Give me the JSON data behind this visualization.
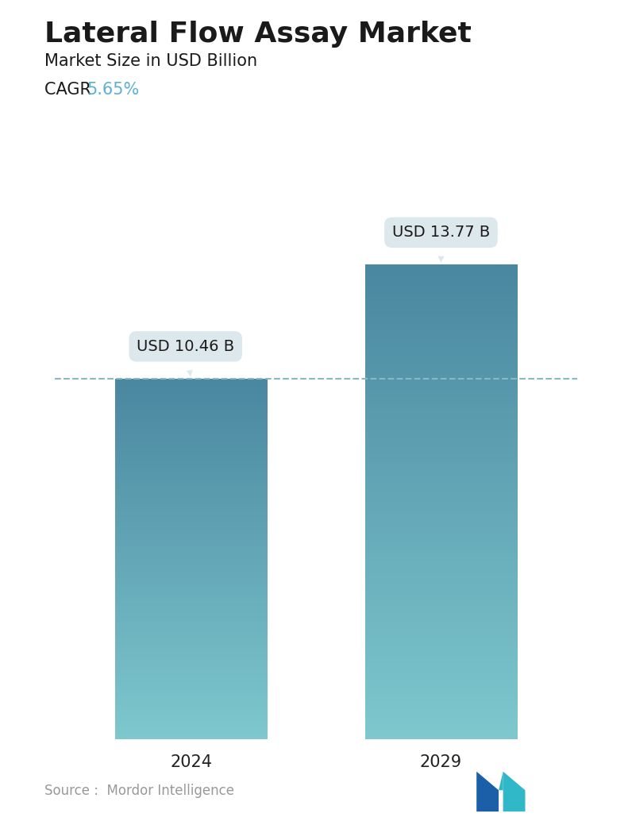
{
  "title": "Lateral Flow Assay Market",
  "subtitle": "Market Size in USD Billion",
  "cagr_label": "CAGR ",
  "cagr_value": "5.65%",
  "cagr_color": "#5bafd6",
  "categories": [
    "2024",
    "2029"
  ],
  "values": [
    10.46,
    13.77
  ],
  "bar_labels": [
    "USD 10.46 B",
    "USD 13.77 B"
  ],
  "bar_top_color": "#4a87a0",
  "bar_bottom_color": "#7ec8ce",
  "dashed_line_color": "#88b8c8",
  "dashed_line_value": 10.46,
  "annotation_bg_color": "#dde8ed",
  "source_text": "Source :  Mordor Intelligence",
  "source_color": "#999999",
  "background_color": "#ffffff",
  "title_fontsize": 26,
  "subtitle_fontsize": 15,
  "cagr_fontsize": 15,
  "bar_label_fontsize": 14,
  "tick_fontsize": 15,
  "source_fontsize": 12,
  "ylim": [
    0,
    15.5
  ],
  "bar_width": 0.28,
  "x_positions": [
    0.27,
    0.73
  ]
}
